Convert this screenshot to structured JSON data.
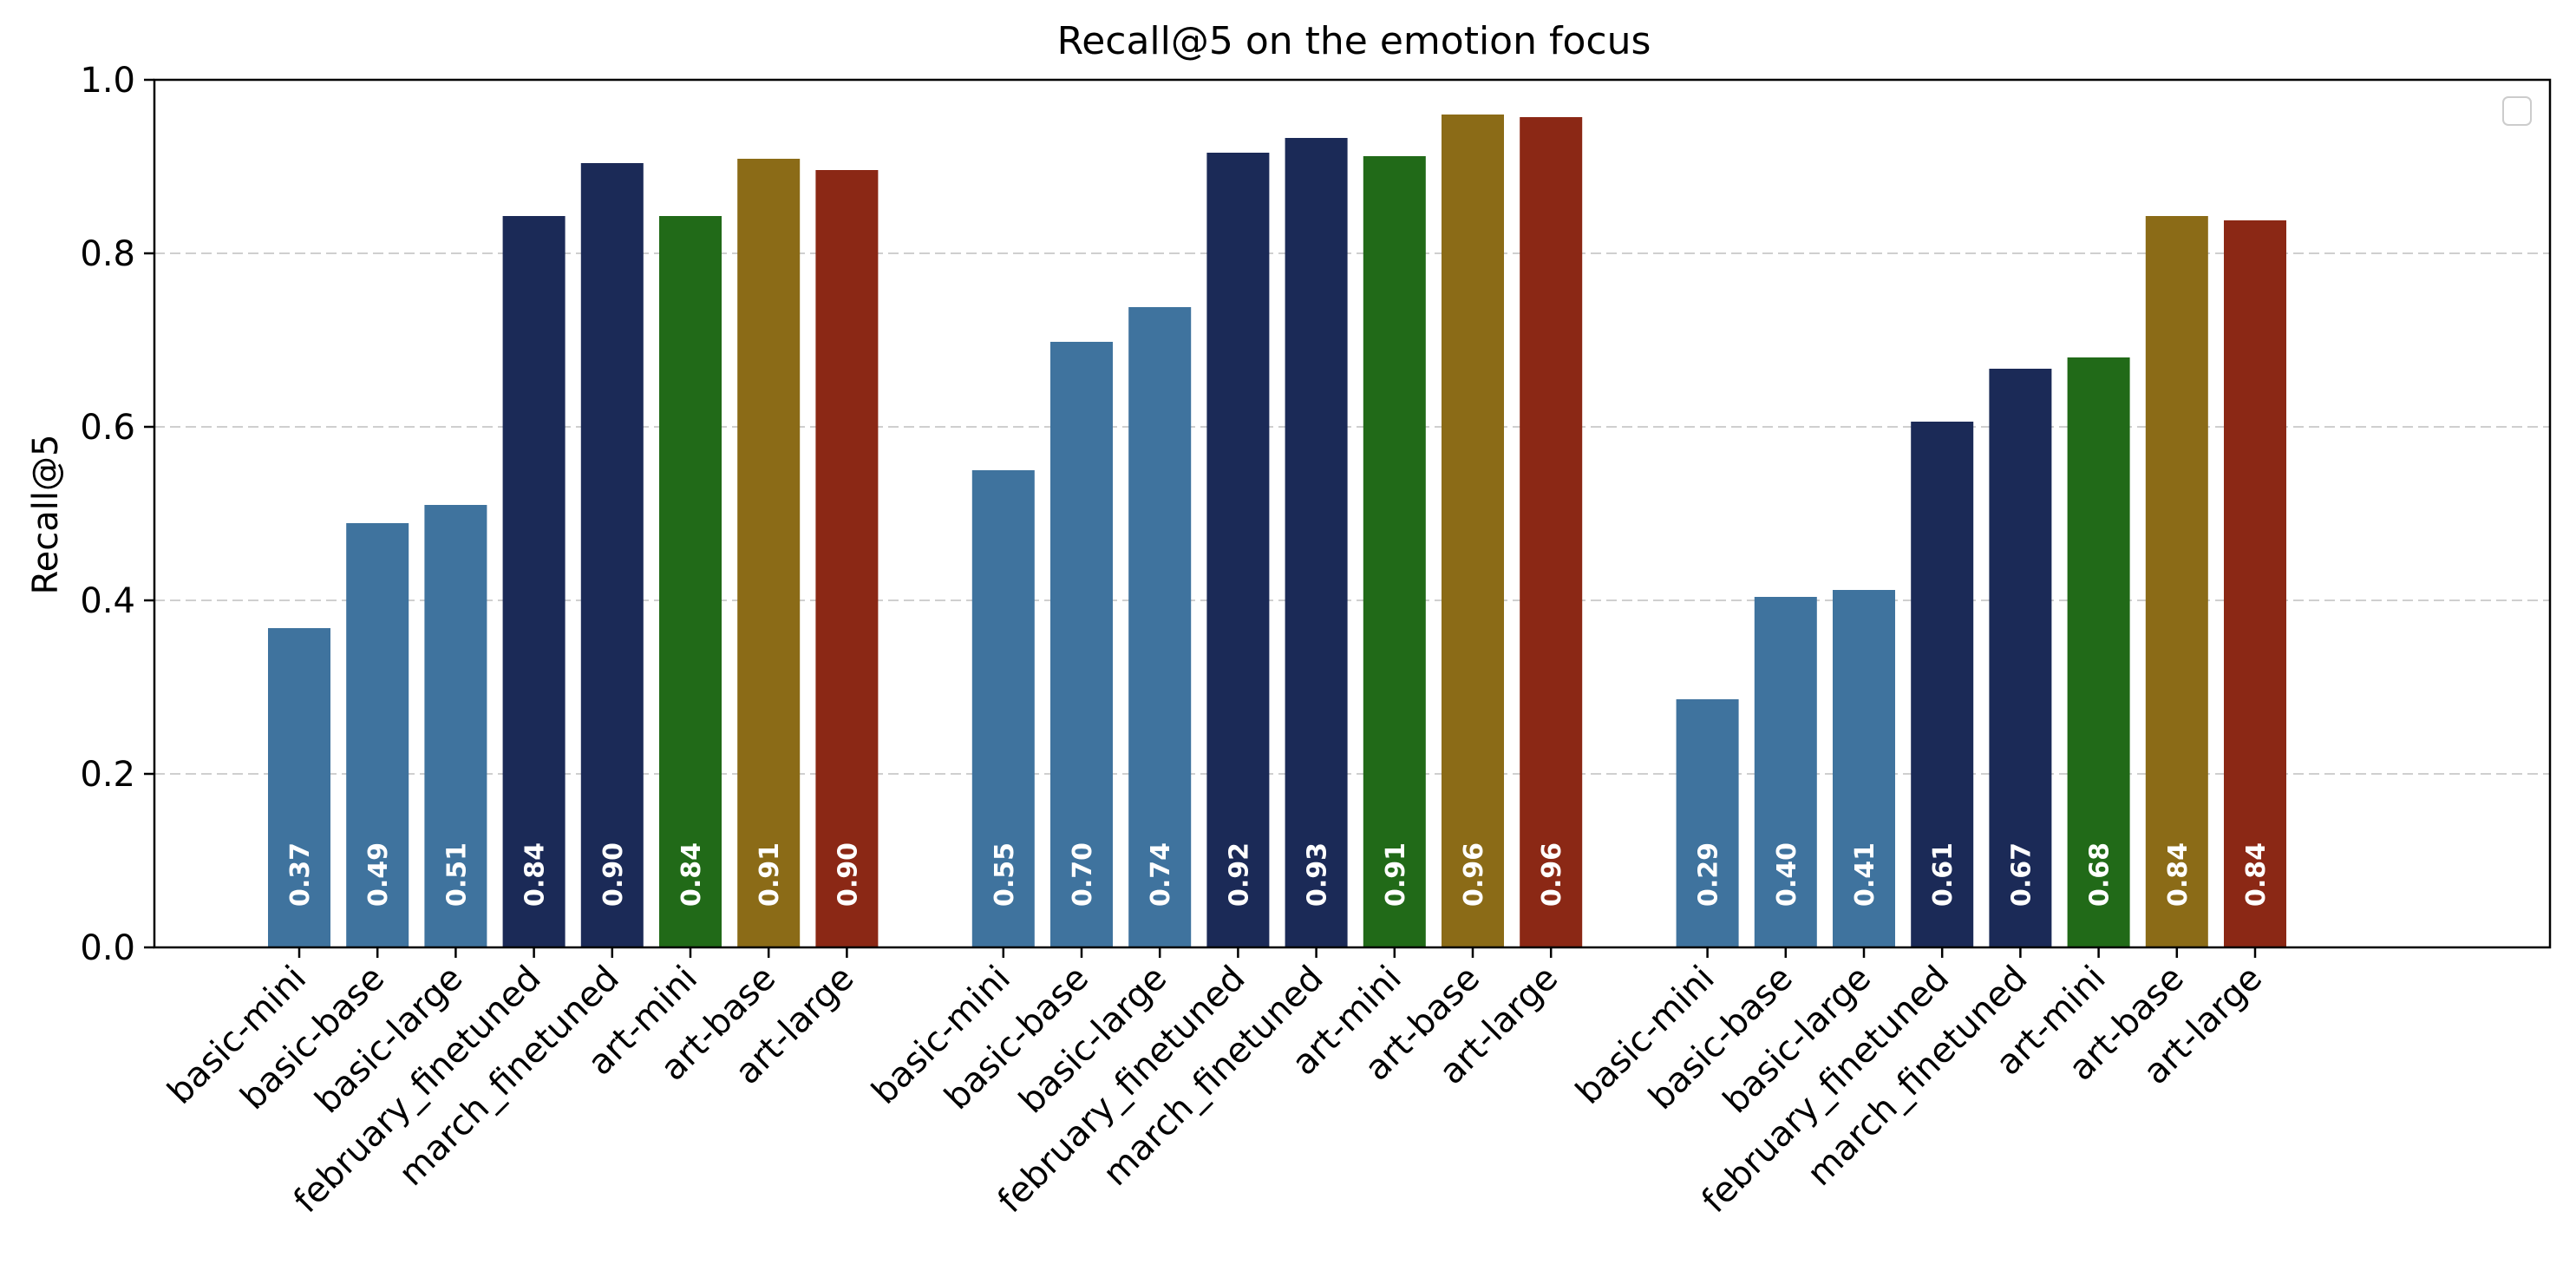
{
  "chart_data": {
    "type": "bar",
    "title": "Recall@5 on the emotion focus",
    "ylabel": "Recall@5",
    "xlabel": "",
    "ylim": [
      0,
      1.0
    ],
    "yticks": [
      "0.0",
      "0.2",
      "0.4",
      "0.6",
      "0.8",
      "1.0"
    ],
    "grid": "horizontal dashed",
    "legend": "top-right (empty)",
    "categories": [
      "basic-mini",
      "basic-base",
      "basic-large",
      "february_finetuned",
      "march_finetuned",
      "art-mini",
      "art-base",
      "art-large"
    ],
    "colors": [
      "#3f739e",
      "#3f739e",
      "#3f739e",
      "#1b2a57",
      "#1b2a57",
      "#216a18",
      "#8b6b17",
      "#8b2815"
    ],
    "groups": [
      {
        "values": [
          0.368,
          0.489,
          0.51,
          0.843,
          0.904,
          0.843,
          0.909,
          0.896
        ],
        "labels": [
          "0.37",
          "0.49",
          "0.51",
          "0.84",
          "0.90",
          "0.84",
          "0.91",
          "0.90"
        ]
      },
      {
        "values": [
          0.55,
          0.698,
          0.738,
          0.916,
          0.933,
          0.912,
          0.96,
          0.957
        ],
        "labels": [
          "0.55",
          "0.70",
          "0.74",
          "0.92",
          "0.93",
          "0.91",
          "0.96",
          "0.96"
        ]
      },
      {
        "values": [
          0.286,
          0.404,
          0.412,
          0.606,
          0.667,
          0.68,
          0.843,
          0.838
        ],
        "labels": [
          "0.29",
          "0.40",
          "0.41",
          "0.61",
          "0.67",
          "0.68",
          "0.84",
          "0.84"
        ]
      }
    ]
  }
}
